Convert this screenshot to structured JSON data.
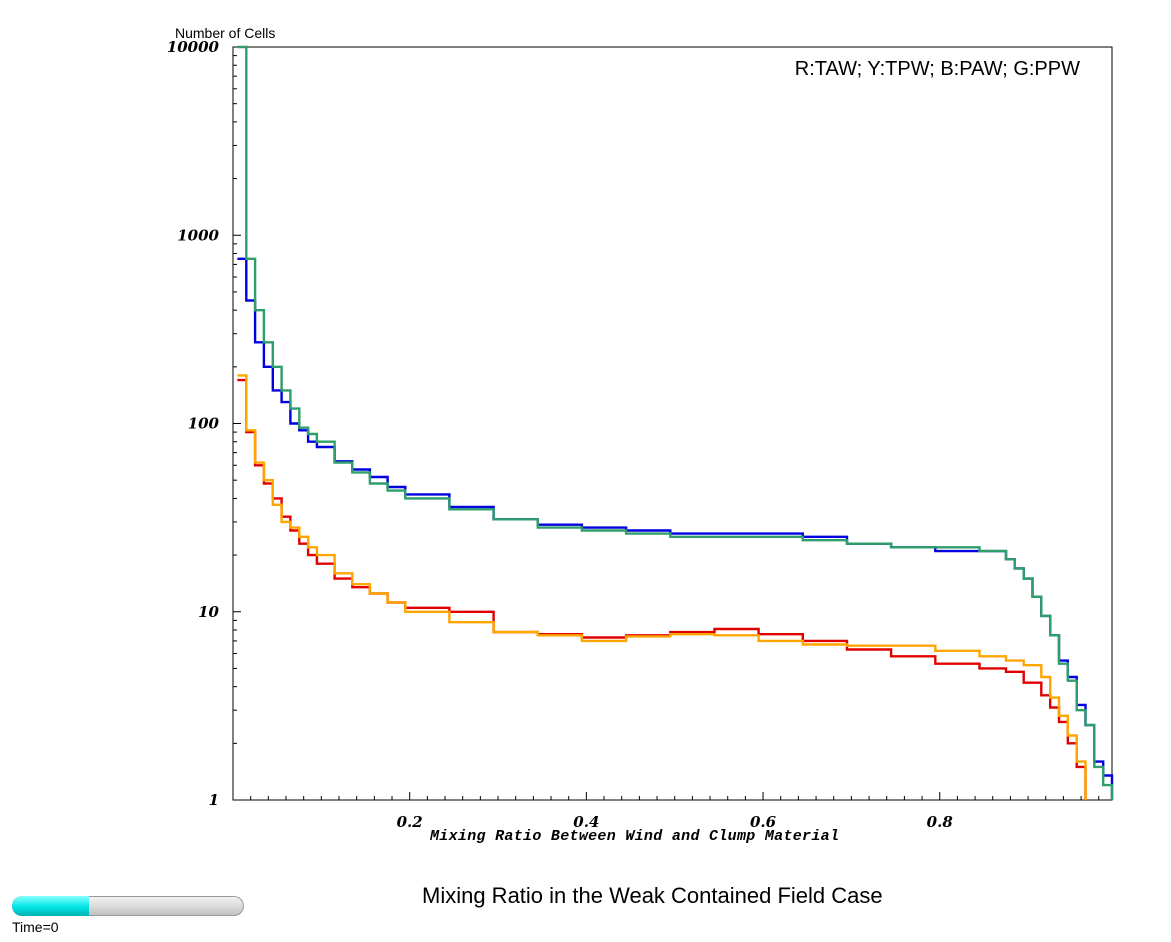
{
  "chart_data": {
    "type": "line",
    "title": "Mixing Ratio in the Weak Contained Field Case",
    "xlabel": "Mixing Ratio Between Wind and Clump Material",
    "ylabel": "Number of Cells",
    "legend_text": "R:TAW; Y:TPW; B:PAW; G:PPW",
    "legend_placement": "top-right",
    "y_scale": "log",
    "xlim": [
      0,
      0.995
    ],
    "ylim": [
      1,
      10000
    ],
    "x_ticks": [
      "0.2",
      "0.4",
      "0.6",
      "0.8"
    ],
    "y_ticks": [
      "1",
      "10",
      "100",
      "1000",
      "10000"
    ],
    "step": true,
    "bin_width": 0.01,
    "series": [
      {
        "name": "TAW",
        "color": "#e00000",
        "x": [
          0.01,
          0.02,
          0.03,
          0.04,
          0.05,
          0.06,
          0.07,
          0.08,
          0.09,
          0.1,
          0.12,
          0.14,
          0.16,
          0.18,
          0.2,
          0.25,
          0.3,
          0.35,
          0.4,
          0.45,
          0.5,
          0.55,
          0.6,
          0.65,
          0.7,
          0.75,
          0.8,
          0.85,
          0.88,
          0.9,
          0.92,
          0.93,
          0.94,
          0.95,
          0.96
        ],
        "y": [
          170,
          90,
          60,
          48,
          40,
          32,
          27,
          23,
          20,
          18,
          15,
          13.5,
          12.5,
          11.2,
          10.5,
          10.0,
          7.8,
          7.6,
          7.3,
          7.5,
          7.8,
          8.1,
          7.6,
          7.0,
          6.3,
          5.8,
          5.3,
          5.0,
          4.8,
          4.2,
          3.6,
          3.1,
          2.6,
          2.0,
          1.5
        ]
      },
      {
        "name": "TPW",
        "color": "#ffa500",
        "x": [
          0.01,
          0.02,
          0.03,
          0.04,
          0.05,
          0.06,
          0.07,
          0.08,
          0.09,
          0.1,
          0.12,
          0.14,
          0.16,
          0.18,
          0.2,
          0.25,
          0.3,
          0.35,
          0.4,
          0.45,
          0.5,
          0.55,
          0.6,
          0.65,
          0.7,
          0.75,
          0.8,
          0.85,
          0.88,
          0.9,
          0.92,
          0.93,
          0.94,
          0.95,
          0.96
        ],
        "y": [
          180,
          92,
          62,
          50,
          37,
          30,
          28,
          25,
          22,
          20,
          16,
          14,
          12.5,
          11.2,
          10.0,
          8.8,
          7.8,
          7.5,
          7.0,
          7.4,
          7.6,
          7.5,
          7.0,
          6.7,
          6.6,
          6.6,
          6.2,
          5.8,
          5.5,
          5.2,
          4.5,
          3.5,
          2.8,
          2.2,
          1.6
        ]
      },
      {
        "name": "PAW",
        "color": "#0000e0",
        "x": [
          0.01,
          0.02,
          0.03,
          0.04,
          0.05,
          0.06,
          0.07,
          0.08,
          0.09,
          0.1,
          0.12,
          0.14,
          0.16,
          0.18,
          0.2,
          0.25,
          0.3,
          0.35,
          0.4,
          0.45,
          0.5,
          0.55,
          0.6,
          0.65,
          0.7,
          0.75,
          0.8,
          0.85,
          0.88,
          0.89,
          0.9,
          0.91,
          0.92,
          0.93,
          0.94,
          0.95,
          0.96,
          0.97,
          0.98,
          0.99
        ],
        "y": [
          750,
          450,
          270,
          200,
          150,
          130,
          100,
          92,
          80,
          75,
          63,
          57,
          52,
          46,
          42,
          36,
          31,
          29,
          28,
          27,
          26,
          26,
          26,
          25,
          23,
          22,
          21,
          21,
          19,
          17,
          15,
          12,
          9.5,
          7.5,
          5.5,
          4.5,
          3.2,
          2.5,
          1.6,
          1.35
        ]
      },
      {
        "name": "PPW",
        "color": "#2e9e6a",
        "x": [
          0.01,
          0.02,
          0.03,
          0.04,
          0.05,
          0.06,
          0.07,
          0.08,
          0.09,
          0.1,
          0.12,
          0.14,
          0.16,
          0.18,
          0.2,
          0.25,
          0.3,
          0.35,
          0.4,
          0.45,
          0.5,
          0.55,
          0.6,
          0.65,
          0.7,
          0.75,
          0.8,
          0.85,
          0.88,
          0.89,
          0.9,
          0.91,
          0.92,
          0.93,
          0.94,
          0.95,
          0.96,
          0.97,
          0.98,
          0.99
        ],
        "y": [
          10000,
          750,
          400,
          270,
          200,
          150,
          120,
          95,
          88,
          80,
          62,
          55,
          48,
          44,
          40,
          35,
          31,
          28,
          27,
          26,
          25,
          25,
          25,
          24,
          23,
          22,
          22,
          21,
          19,
          17,
          15,
          12,
          9.5,
          7.5,
          5.3,
          4.3,
          3.0,
          2.5,
          1.5,
          1.2
        ]
      }
    ]
  },
  "time_indicator": {
    "label": "Time=0",
    "progress": 0.33,
    "fill_color": "#00e5e5"
  }
}
